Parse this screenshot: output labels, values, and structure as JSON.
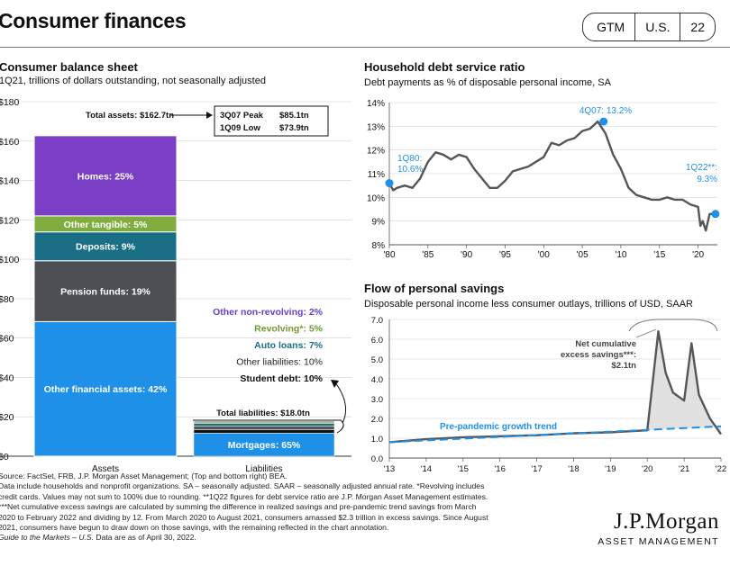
{
  "header": {
    "title": "Consumer finances",
    "badges": [
      "GTM",
      "U.S.",
      "22"
    ]
  },
  "balance": {
    "title": "Consumer balance sheet",
    "subtitle": "1Q21, trillions of dollars outstanding, not seasonally adjusted"
  },
  "debt": {
    "title": "Household debt service ratio",
    "subtitle": "Debt payments as % of disposable personal income, SA"
  },
  "savings": {
    "title": "Flow of personal savings",
    "subtitle": "Disposable personal income less consumer outlays, trillions of USD, SAAR"
  },
  "footer": {
    "lines": [
      "Source: FactSet, FRB, J.P. Morgan Asset Management; (Top and bottom right) BEA.",
      "Data include households and nonprofit organizations. SA – seasonally adjusted. SAAR – seasonally adjusted annual rate. *Revolving includes",
      "credit cards. Values may not sum to 100% due to rounding. **1Q22 figures for debt service ratio are J.P. Morgan Asset Management estimates.",
      "***Net cumulative excess savings are calculated by summing the difference in realized savings and pre-pandemic trend savings from March",
      "2020 to February 2022 and dividing by 12. From March 2020 to August 2021, consumers amassed $2.3 trillion in excess savings. Since August",
      "2021, consumers have begun to draw down on those savings, with the remaining reflected in the chart annotation."
    ],
    "gtm": "Guide to the Markets – U.S.",
    "asof": " Data are as of April 30, 2022."
  },
  "logo": {
    "name": "J.P.Morgan",
    "sub": "ASSET MANAGEMENT"
  },
  "chart_data": [
    {
      "type": "bar",
      "title": "Consumer balance sheet",
      "subtitle": "1Q21, trillions of dollars outstanding, not seasonally adjusted",
      "categories": [
        "Assets",
        "Liabilities"
      ],
      "ylim": [
        0,
        180
      ],
      "yticks": [
        "$0",
        "$20",
        "$40",
        "$60",
        "$80",
        "$100",
        "$120",
        "$140",
        "$160",
        "$180"
      ],
      "assets_total": 162.7,
      "liabilities_total": 18.0,
      "assets": [
        {
          "name": "Other financial assets: 42%",
          "pct": 42,
          "color": "#1e90e8"
        },
        {
          "name": "Pension funds: 19%",
          "pct": 19,
          "color": "#4d4f53"
        },
        {
          "name": "Deposits: 9%",
          "pct": 9,
          "color": "#1a6e86"
        },
        {
          "name": "Other tangible: 5%",
          "pct": 5,
          "color": "#7fae3f"
        },
        {
          "name": "Homes: 25%",
          "pct": 25,
          "color": "#7b3fc6"
        }
      ],
      "liabilities": [
        {
          "name": "Mortgages: 65%",
          "pct": 65,
          "color": "#1e90e8"
        },
        {
          "name": "Student debt: 10%",
          "pct": 10,
          "color": "#111111"
        },
        {
          "name": "Other liabilities: 10%",
          "pct": 10,
          "color": "#555555"
        },
        {
          "name": "Auto loans: 7%",
          "pct": 7,
          "color": "#1a6e86"
        },
        {
          "name": "Revolving*: 5%",
          "pct": 5,
          "color": "#7fae3f"
        },
        {
          "name": "Other non-revolving: 2%",
          "pct": 2,
          "color": "#7b3fc6"
        }
      ],
      "annotations": {
        "total_assets": "Total assets: $162.7tn",
        "total_liabilities": "Total liabilities: $18.0tn",
        "peak_label": "3Q07 Peak",
        "peak_value": "$85.1tn",
        "low_label": "1Q09 Low",
        "low_value": "$73.9tn"
      }
    },
    {
      "type": "line",
      "title": "Household debt service ratio",
      "ylim": [
        8,
        14
      ],
      "yticks": [
        "8%",
        "9%",
        "10%",
        "11%",
        "12%",
        "13%",
        "14%"
      ],
      "xlim": [
        1980,
        2022.5
      ],
      "xticks": [
        "'80",
        "'85",
        "'90",
        "'95",
        "'00",
        "'05",
        "'10",
        "'15",
        "'20"
      ],
      "series": [
        {
          "points": [
            [
              1980,
              10.6
            ],
            [
              1980.5,
              10.3
            ],
            [
              1981,
              10.4
            ],
            [
              1982,
              10.5
            ],
            [
              1983,
              10.4
            ],
            [
              1984,
              10.8
            ],
            [
              1985,
              11.5
            ],
            [
              1986,
              11.9
            ],
            [
              1987,
              11.8
            ],
            [
              1988,
              11.6
            ],
            [
              1989,
              11.8
            ],
            [
              1990,
              11.7
            ],
            [
              1991,
              11.2
            ],
            [
              1992,
              10.8
            ],
            [
              1993,
              10.4
            ],
            [
              1994,
              10.4
            ],
            [
              1995,
              10.7
            ],
            [
              1996,
              11.1
            ],
            [
              1997,
              11.2
            ],
            [
              1998,
              11.3
            ],
            [
              1999,
              11.5
            ],
            [
              2000,
              11.7
            ],
            [
              2001,
              12.3
            ],
            [
              2002,
              12.2
            ],
            [
              2003,
              12.4
            ],
            [
              2004,
              12.5
            ],
            [
              2005,
              12.8
            ],
            [
              2006,
              12.9
            ],
            [
              2007,
              13.2
            ],
            [
              2008,
              12.7
            ],
            [
              2009,
              11.8
            ],
            [
              2010,
              11.2
            ],
            [
              2011,
              10.4
            ],
            [
              2012,
              10.1
            ],
            [
              2013,
              10.0
            ],
            [
              2014,
              9.9
            ],
            [
              2015,
              9.9
            ],
            [
              2016,
              10.0
            ],
            [
              2017,
              9.9
            ],
            [
              2018,
              9.9
            ],
            [
              2019,
              9.7
            ],
            [
              2020,
              9.6
            ],
            [
              2020.3,
              8.8
            ],
            [
              2020.6,
              9.0
            ],
            [
              2021,
              8.6
            ],
            [
              2021.5,
              9.3
            ],
            [
              2022,
              9.3
            ]
          ]
        }
      ],
      "labels": [
        "1Q80:",
        "10.6%",
        "4Q07: 13.2%",
        "1Q22**:",
        "9.3%"
      ]
    },
    {
      "type": "line",
      "title": "Flow of personal savings",
      "ylim": [
        0,
        7
      ],
      "yticks": [
        "0.0",
        "1.0",
        "2.0",
        "3.0",
        "4.0",
        "5.0",
        "6.0",
        "7.0"
      ],
      "xlim": [
        2013,
        2022
      ],
      "xticks": [
        "'13",
        "'14",
        "'15",
        "'16",
        "'17",
        "'18",
        "'19",
        "'20",
        "'21",
        "'22"
      ],
      "series": [
        {
          "name": "Savings",
          "points": [
            [
              2013,
              0.8
            ],
            [
              2014,
              0.95
            ],
            [
              2015,
              1.05
            ],
            [
              2016,
              1.1
            ],
            [
              2017,
              1.15
            ],
            [
              2018,
              1.25
            ],
            [
              2019,
              1.3
            ],
            [
              2020,
              1.4
            ],
            [
              2020.3,
              6.4
            ],
            [
              2020.5,
              4.3
            ],
            [
              2020.7,
              3.3
            ],
            [
              2021,
              2.9
            ],
            [
              2021.2,
              5.8
            ],
            [
              2021.4,
              3.2
            ],
            [
              2021.7,
              2.0
            ],
            [
              2022,
              1.2
            ]
          ]
        },
        {
          "name": "Pre-pandemic growth trend",
          "points": [
            [
              2013,
              0.8
            ],
            [
              2022,
              1.6
            ]
          ]
        }
      ],
      "labels": {
        "trend": "Pre-pandemic growth trend",
        "excess": [
          "Net cumulative",
          "excess savings***:",
          "$2.1tn"
        ]
      }
    }
  ]
}
